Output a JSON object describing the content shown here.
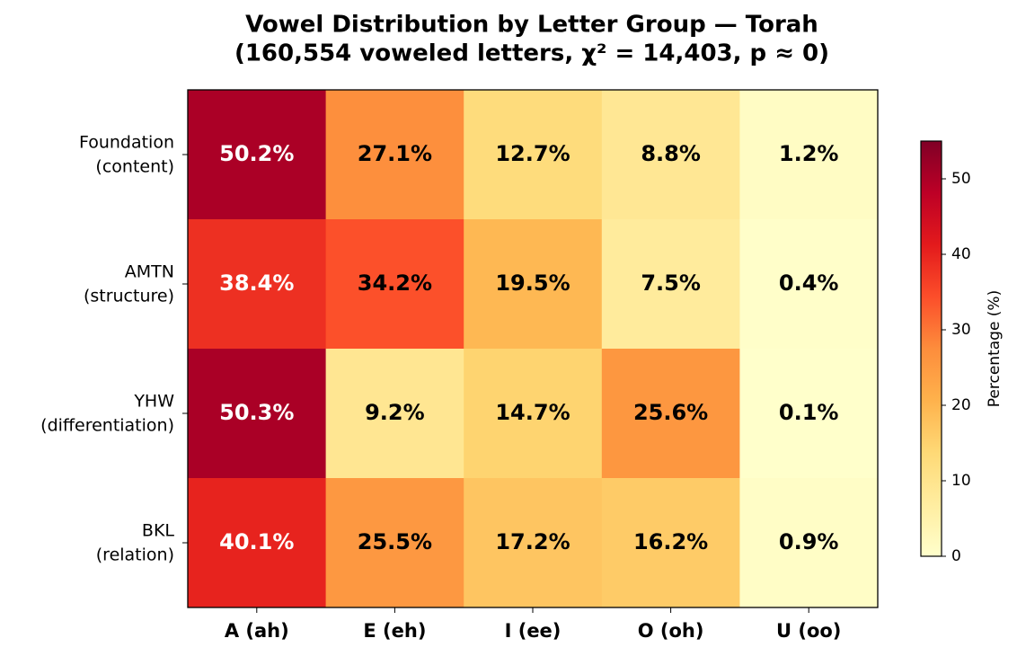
{
  "chart_data": {
    "type": "heatmap",
    "title": "Vowel Distribution by Letter Group — Torah",
    "subtitle": "(160,554 voweled letters, χ² = 14,403, p ≈ 0)",
    "x_categories": [
      "A (ah)",
      "E (eh)",
      "I (ee)",
      "O (oh)",
      "U (oo)"
    ],
    "y_categories": [
      "Foundation\n(content)",
      "AMTN\n(structure)",
      "YHW\n(differentiation)",
      "BKL\n(relation)"
    ],
    "values": [
      [
        50.2,
        27.1,
        12.7,
        8.8,
        1.2
      ],
      [
        38.4,
        34.2,
        19.5,
        7.5,
        0.4
      ],
      [
        50.3,
        9.2,
        14.7,
        25.6,
        0.1
      ],
      [
        40.1,
        25.5,
        17.2,
        16.2,
        0.9
      ]
    ],
    "value_labels": [
      [
        "50.2%",
        "27.1%",
        "12.7%",
        "8.8%",
        "1.2%"
      ],
      [
        "38.4%",
        "34.2%",
        "19.5%",
        "7.5%",
        "0.4%"
      ],
      [
        "50.3%",
        "9.2%",
        "14.7%",
        "25.6%",
        "0.1%"
      ],
      [
        "40.1%",
        "25.5%",
        "17.2%",
        "16.2%",
        "0.9%"
      ]
    ],
    "colormap": [
      "#ffffcc",
      "#ffeda0",
      "#fed976",
      "#feb24c",
      "#fd8d3c",
      "#fc4e2a",
      "#e31a1c",
      "#bd0026",
      "#800026"
    ],
    "zlim": [
      0,
      55
    ],
    "zticks": [
      0,
      10,
      20,
      30,
      40,
      50
    ],
    "colorbar_label": "Percentage (%)"
  }
}
